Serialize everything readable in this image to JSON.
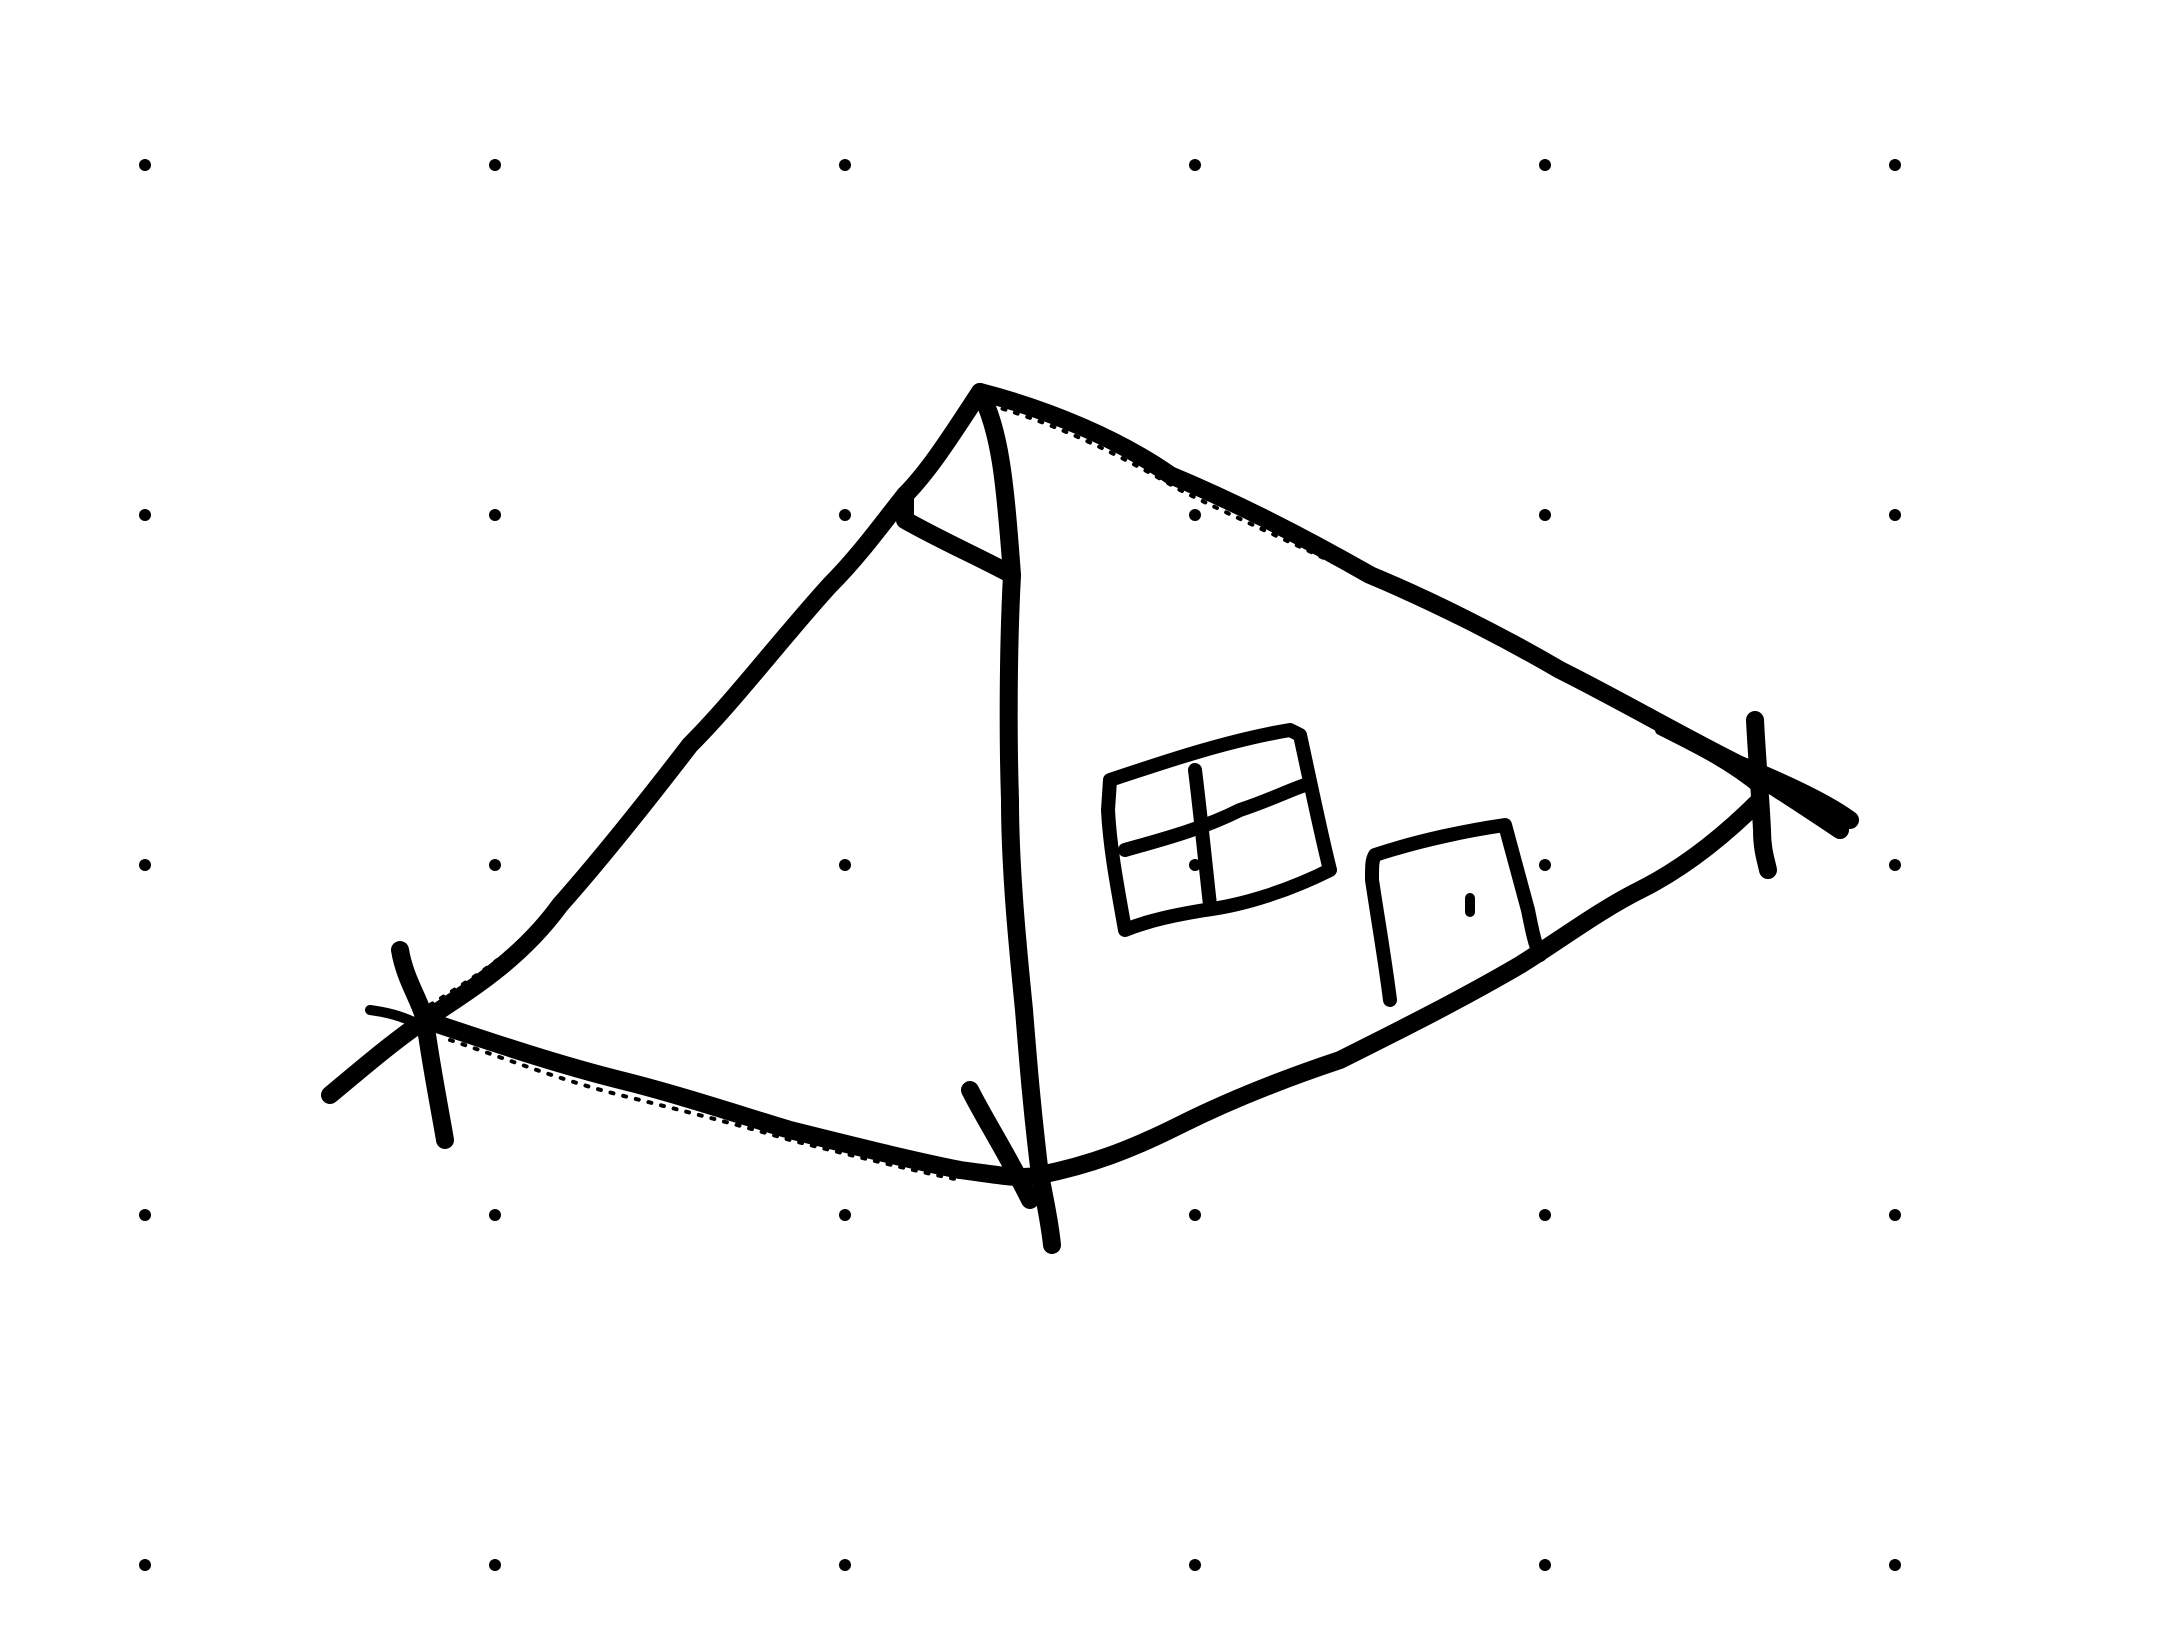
{
  "image": {
    "background_color": "#ffffff",
    "ink_color": "#000000"
  },
  "diagram": {
    "dot_grid": {
      "rows": 5,
      "columns": 6
    },
    "shapes": [
      "tent-outline",
      "tent-left-panel",
      "tent-right-panel",
      "tent-top-flap",
      "tent-window",
      "tent-door",
      "guy-rope-left",
      "guy-rope-right",
      "tent-pole-bottom"
    ]
  }
}
